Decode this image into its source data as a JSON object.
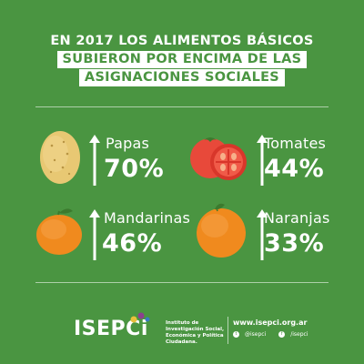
{
  "title": {
    "line1": "EN 2017 LOS ALIMENTOS BÁSICOS",
    "line2": "SUBIERON POR ENCIMA DE LAS",
    "line3": "ASIGNACIONES SOCIALES"
  },
  "items": [
    {
      "name": "Papas",
      "value": "70%",
      "icon": "potato-icon"
    },
    {
      "name": "Tomates",
      "value": "44%",
      "icon": "tomato-icon"
    },
    {
      "name": "Mandarinas",
      "value": "46%",
      "icon": "mandarin-icon"
    },
    {
      "name": "Naranjas",
      "value": "33%",
      "icon": "orange-icon"
    }
  ],
  "footer": {
    "logo": "ISEPCi",
    "institute": "Instituto de Investigación Social, Económica y Política Ciudadana.",
    "website": "www.isepci.org.ar",
    "twitter": "@isepci",
    "facebook": "/isepci"
  },
  "colors": {
    "background": "#4a9541",
    "text": "#ffffff",
    "potato": "#e8c873",
    "tomato": "#e8493a",
    "citrus": "#f08a1e",
    "leaf": "#3c7a2e"
  }
}
